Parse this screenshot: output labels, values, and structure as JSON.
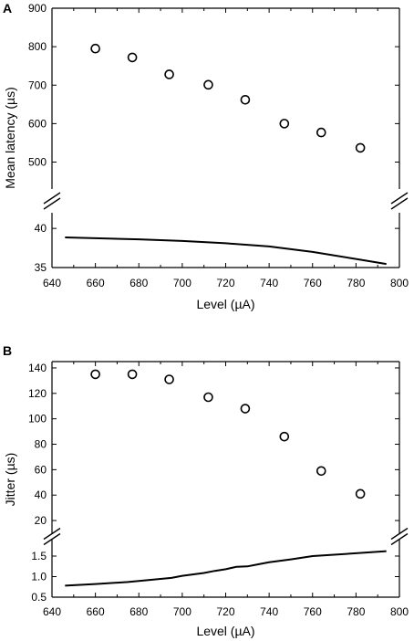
{
  "chart_data": [
    {
      "panel": "A",
      "type": "scatter",
      "xlabel": "Level (µA)",
      "ylabel": "Mean latency (µs)",
      "xlim": [
        640,
        800
      ],
      "x_ticks": [
        640,
        660,
        680,
        700,
        720,
        740,
        760,
        780,
        800
      ],
      "y_upper": {
        "range": [
          430,
          900
        ],
        "ticks": [
          500,
          600,
          700,
          800,
          900
        ]
      },
      "y_lower": {
        "range": [
          35,
          42
        ],
        "ticks": [
          35,
          40
        ]
      },
      "axis_break": true,
      "series": [
        {
          "type": "scatter",
          "marker": "open-circle",
          "segment": "upper",
          "x": [
            660,
            677,
            694,
            712,
            729,
            747,
            764,
            782
          ],
          "y": [
            795,
            772,
            728,
            701,
            662,
            600,
            577,
            537
          ]
        },
        {
          "type": "line",
          "segment": "lower",
          "x": [
            646,
            660,
            680,
            700,
            720,
            740,
            760,
            780,
            794
          ],
          "y": [
            38.85,
            38.75,
            38.6,
            38.4,
            38.1,
            37.7,
            37.0,
            36.1,
            35.45
          ]
        }
      ]
    },
    {
      "panel": "B",
      "type": "scatter",
      "xlabel": "Level (µA)",
      "ylabel": "Jitter (µs)",
      "xlim": [
        640,
        800
      ],
      "x_ticks": [
        640,
        660,
        680,
        700,
        720,
        740,
        760,
        780,
        800
      ],
      "y_upper": {
        "range": [
          10,
          145
        ],
        "ticks": [
          20,
          40,
          60,
          80,
          100,
          120,
          140
        ]
      },
      "y_lower": {
        "range": [
          0.5,
          1.9
        ],
        "ticks": [
          0.5,
          1.0,
          1.5
        ],
        "tick_labels": [
          "0.5",
          "1.0",
          "1.5"
        ]
      },
      "axis_break": true,
      "series": [
        {
          "type": "scatter",
          "marker": "open-circle",
          "segment": "upper",
          "x": [
            660,
            677,
            694,
            712,
            729,
            747,
            764,
            782
          ],
          "y": [
            135,
            135,
            131,
            117,
            108,
            86,
            59,
            41
          ]
        },
        {
          "type": "line",
          "segment": "lower",
          "x": [
            646,
            660,
            675,
            685,
            695,
            700,
            710,
            715,
            720,
            725,
            730,
            735,
            740,
            750,
            760,
            780,
            794
          ],
          "y": [
            0.78,
            0.82,
            0.87,
            0.92,
            0.97,
            1.02,
            1.09,
            1.14,
            1.18,
            1.24,
            1.25,
            1.3,
            1.35,
            1.42,
            1.5,
            1.57,
            1.62
          ]
        }
      ]
    }
  ]
}
